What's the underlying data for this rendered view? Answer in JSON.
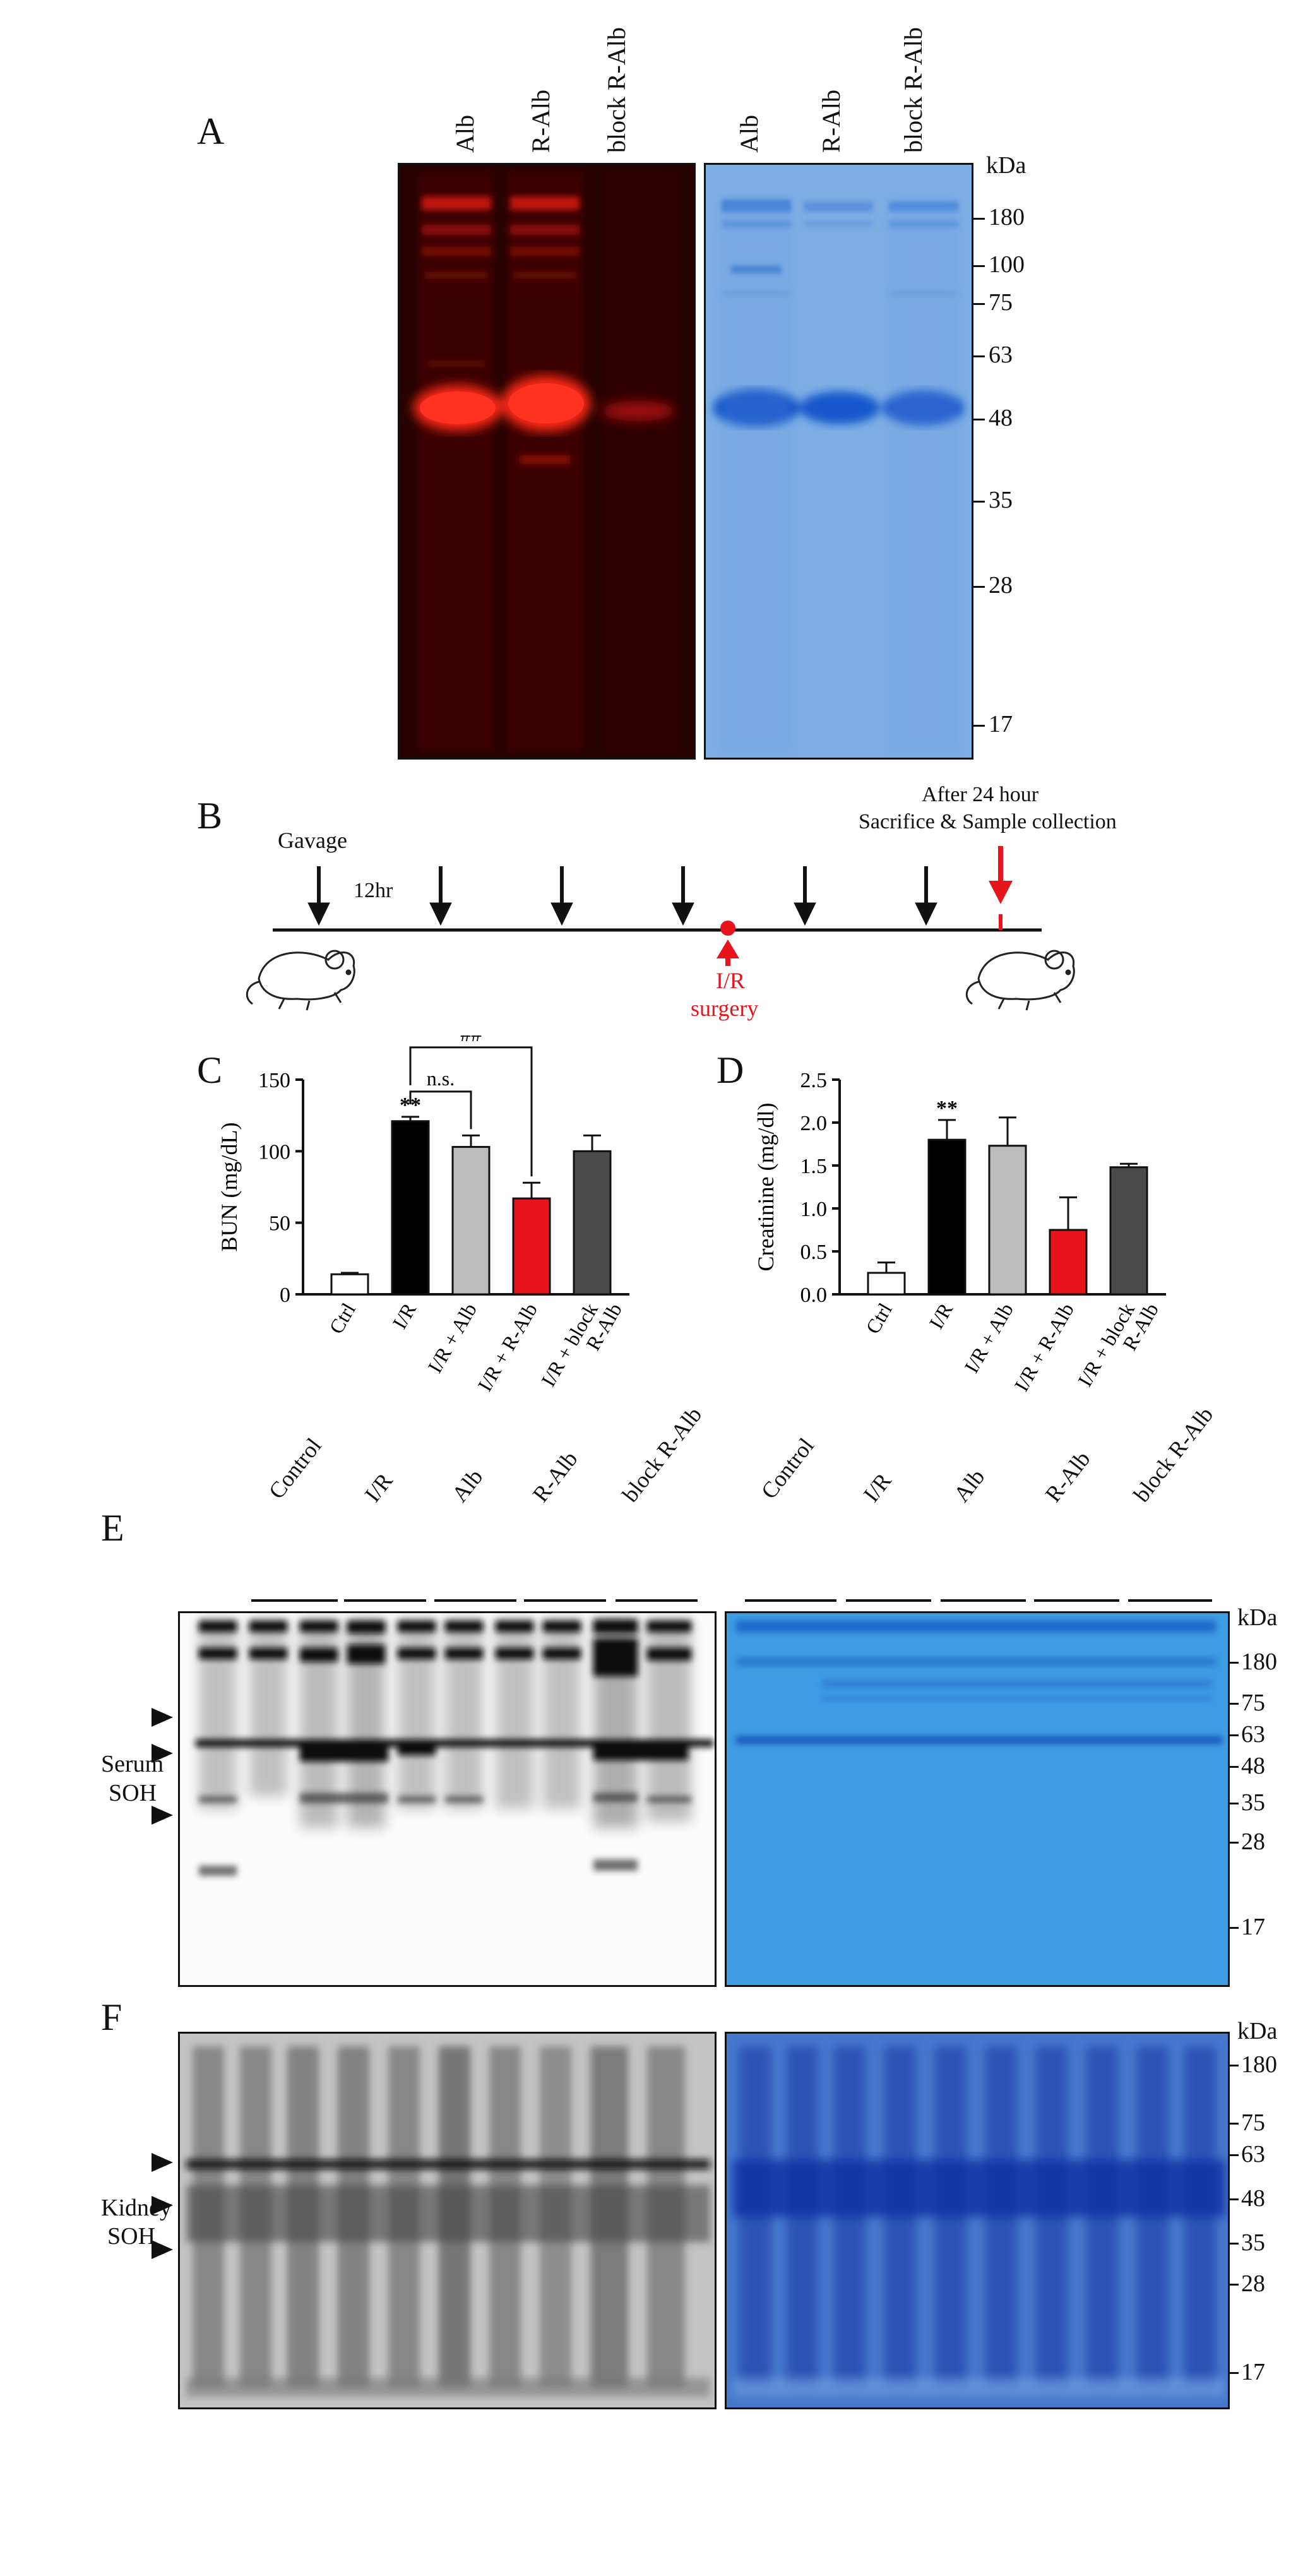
{
  "panels": {
    "A": "A",
    "B": "B",
    "C": "C",
    "D": "D",
    "E": "E",
    "F": "F"
  },
  "panelA": {
    "left_lanes": [
      "Alb",
      "R-Alb",
      "block R-Alb"
    ],
    "right_lanes": [
      "Alb",
      "R-Alb",
      "block R-Alb"
    ],
    "kda_label": "kDa",
    "markers": [
      "180",
      "100",
      "75",
      "63",
      "48",
      "35",
      "28",
      "17"
    ]
  },
  "panelB": {
    "gavage": "Gavage",
    "interval": "12hr",
    "after_line1": "After 24 hour",
    "after_line2": "Sacrifice & Sample collection",
    "ir_line1": "I/R",
    "ir_line2": "surgery",
    "red_color": "#e8141b"
  },
  "chart_data": [
    {
      "type": "bar",
      "panel": "C",
      "categories": [
        "Ctrl",
        "I/R",
        "I/R + Alb",
        "I/R + R-Alb",
        "I/R + block R-Alb"
      ],
      "series": [
        {
          "values": [
            14,
            121,
            103,
            67,
            100
          ],
          "errors": [
            1,
            3,
            8,
            11,
            11
          ]
        }
      ],
      "bar_colors": [
        "#ffffff",
        "#000000",
        "#bdbdbd",
        "#e8141b",
        "#4a4a4a"
      ],
      "ylabel": "BUN  (mg/dL)",
      "ylim": [
        0,
        150
      ],
      "yticks": [
        0,
        50,
        100,
        150
      ],
      "annotations": {
        "sig_ir": "**",
        "bracket_ns": "n.s.",
        "bracket_hash": "##"
      }
    },
    {
      "type": "bar",
      "panel": "D",
      "categories": [
        "Ctrl",
        "I/R",
        "I/R + Alb",
        "I/R + R-Alb",
        "I/R + block R-Alb"
      ],
      "series": [
        {
          "values": [
            0.25,
            1.8,
            1.73,
            0.75,
            1.48
          ],
          "errors": [
            0.12,
            0.23,
            0.33,
            0.38,
            0.04
          ]
        }
      ],
      "bar_colors": [
        "#ffffff",
        "#000000",
        "#bdbdbd",
        "#e8141b",
        "#4a4a4a"
      ],
      "ylabel": "Creatinine (mg/dl)",
      "ylim": [
        0,
        2.5
      ],
      "yticks": [
        0.0,
        0.5,
        1.0,
        1.5,
        2.0,
        2.5
      ],
      "annotations": {
        "sig_ir": "**"
      }
    }
  ],
  "panelE": {
    "groups": [
      "Control",
      "I/R",
      "Alb",
      "R-Alb",
      "block R-Alb"
    ],
    "side_label_1": "Serum",
    "side_label_2": "SOH",
    "kda_label": "kDa",
    "markers": [
      "180",
      "75",
      "63",
      "48",
      "35",
      "28",
      "17"
    ]
  },
  "panelF": {
    "side_label_1": "Kidney",
    "side_label_2": "SOH",
    "kda_label": "kDa",
    "markers": [
      "180",
      "75",
      "63",
      "48",
      "35",
      "28",
      "17"
    ]
  }
}
